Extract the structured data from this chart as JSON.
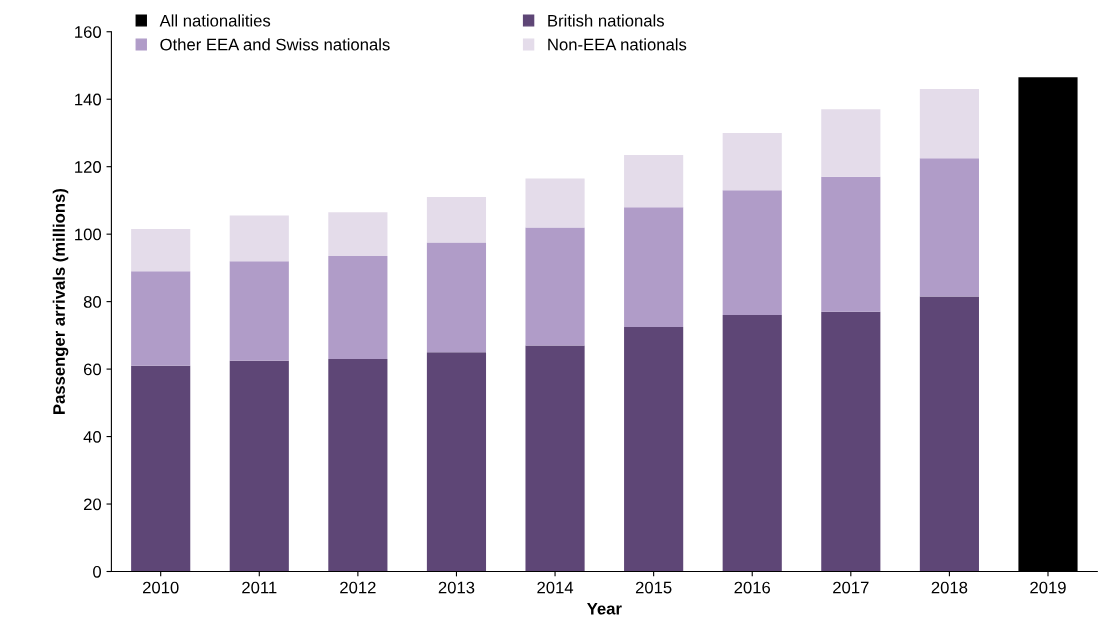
{
  "chart_data": {
    "type": "bar",
    "stacked": true,
    "xlabel": "Year",
    "ylabel": "Passenger arrivals (millions)",
    "categories": [
      "2010",
      "2011",
      "2012",
      "2013",
      "2014",
      "2015",
      "2016",
      "2017",
      "2018",
      "2019"
    ],
    "series": [
      {
        "name": "British nationals",
        "color": "#5e4676",
        "values": [
          61,
          62.5,
          63,
          65,
          67,
          72.5,
          76,
          77,
          81.5,
          null
        ]
      },
      {
        "name": "Other EEA and Swiss nationals",
        "color": "#b09cc8",
        "values": [
          28,
          29.5,
          30.5,
          32.5,
          35,
          35.5,
          37,
          40,
          41,
          null
        ]
      },
      {
        "name": "Non-EEA nationals",
        "color": "#e4dcea",
        "values": [
          12.5,
          13.5,
          13,
          13.5,
          14.5,
          15.5,
          17,
          20,
          20.5,
          null
        ]
      },
      {
        "name": "All nationalities",
        "color": "#000000",
        "values": [
          null,
          null,
          null,
          null,
          null,
          null,
          null,
          null,
          null,
          146.5
        ]
      }
    ],
    "ylim": [
      0,
      160
    ],
    "yticks": [
      0,
      20,
      40,
      60,
      80,
      100,
      120,
      140,
      160
    ],
    "grid": false,
    "legend": "top left"
  }
}
